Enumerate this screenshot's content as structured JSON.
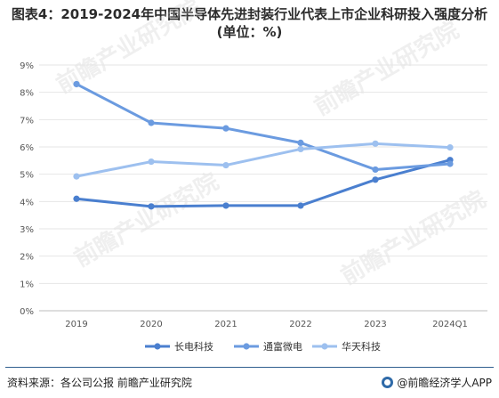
{
  "title": "图表4：2019-2024年中国半导体先进封装行业代表上市企业科研投入强度分析(单位：%)",
  "footer": {
    "source": "资料来源：各公司公报 前瞻产业研究院",
    "brand": "@前瞻经济学人APP"
  },
  "colors": {
    "series": [
      "#4a7fcf",
      "#6b9be0",
      "#9dc0ef"
    ],
    "grid": "#e6e6e6",
    "axis_text": "#555555"
  },
  "chart_data": {
    "type": "line",
    "title": "图表4：2019-2024年中国半导体先进封装行业代表上市企业科研投入强度分析(单位：%)",
    "xlabel": "",
    "ylabel": "",
    "categories": [
      "2019",
      "2020",
      "2021",
      "2022",
      "2023",
      "2024Q1"
    ],
    "ylim": [
      0,
      9
    ],
    "yticks": [
      0,
      1,
      2,
      3,
      4,
      5,
      6,
      7,
      8,
      9
    ],
    "ytick_labels": [
      "0%",
      "1%",
      "2%",
      "3%",
      "4%",
      "5%",
      "6%",
      "7%",
      "8%",
      "9%"
    ],
    "grid": true,
    "legend_position": "bottom",
    "series": [
      {
        "name": "长电科技",
        "values": [
          4.1,
          3.82,
          3.85,
          3.85,
          4.8,
          5.52
        ]
      },
      {
        "name": "通富微电",
        "values": [
          8.3,
          6.88,
          6.68,
          6.15,
          5.17,
          5.38
        ]
      },
      {
        "name": "华天科技",
        "values": [
          4.92,
          5.46,
          5.33,
          5.92,
          6.12,
          5.98
        ]
      }
    ]
  }
}
